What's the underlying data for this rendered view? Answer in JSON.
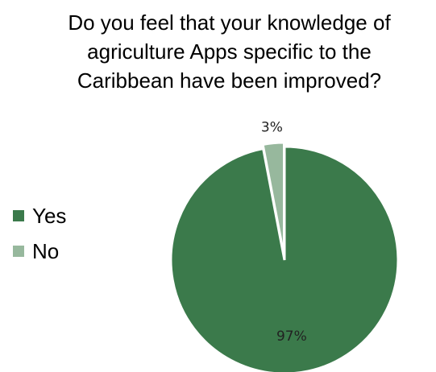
{
  "chart_data": {
    "type": "pie",
    "title_lines": [
      "Do you feel that your knowledge of",
      "agriculture Apps specific to the",
      "Caribbean have been improved?"
    ],
    "categories": [
      "Yes",
      "No"
    ],
    "values": [
      97,
      3
    ],
    "labels": [
      "97%",
      "3%"
    ],
    "colors": [
      "#3b7a4b",
      "#97b89d"
    ],
    "start_angle_deg": 0,
    "direction": "clockwise",
    "exploded_slice": "No",
    "legend_position": "left"
  }
}
